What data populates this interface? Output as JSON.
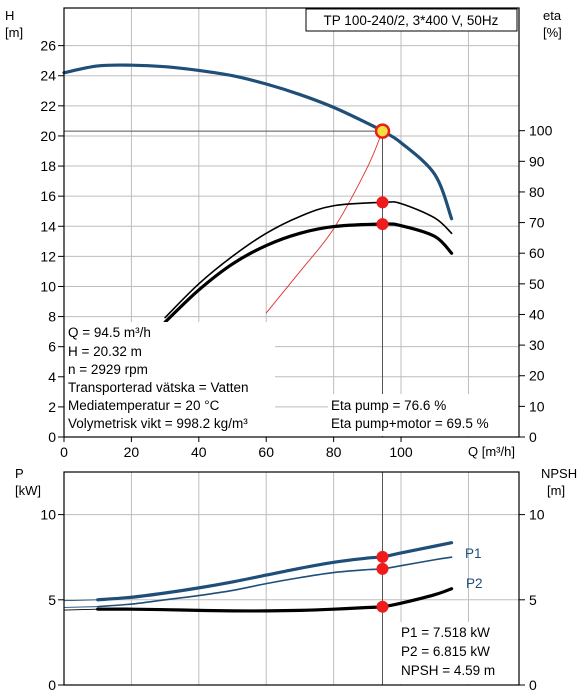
{
  "chart_data": [
    {
      "type": "line",
      "title": "TP 100-240/2, 3*400 V, 50Hz",
      "xlabel": "Q [m³/h]",
      "ylabel_left": "H",
      "ylabel_left_unit": "[m]",
      "ylabel_right": "eta",
      "ylabel_right_unit": "[%]",
      "xlim": [
        0,
        135
      ],
      "ylim_left": [
        0,
        28
      ],
      "ylim_right_eta": [
        0,
        100
      ],
      "grid": true,
      "x_ticks": [
        "0",
        "20",
        "40",
        "60",
        "80",
        "100"
      ],
      "y_ticks_left": [
        "0",
        "2",
        "4",
        "6",
        "8",
        "10",
        "12",
        "14",
        "16",
        "18",
        "20",
        "22",
        "24",
        "26"
      ],
      "y_ticks_right": [
        "0",
        "10",
        "20",
        "30",
        "40",
        "50",
        "60",
        "70",
        "80",
        "90",
        "100"
      ],
      "series": [
        {
          "color": "#1f4e79",
          "axis": "left",
          "x": [
            0,
            10,
            20,
            30,
            40,
            50,
            60,
            70,
            80,
            90,
            94.5,
            100,
            110,
            115
          ],
          "y": [
            24.2,
            24.65,
            24.7,
            24.6,
            24.35,
            24.0,
            23.45,
            22.75,
            21.9,
            20.85,
            20.32,
            19.55,
            17.45,
            14.5
          ]
        },
        {
          "color": "#e03030",
          "axis": "right",
          "x": [
            60,
            70,
            80,
            90,
            94.5
          ],
          "y": [
            40.5,
            54,
            68,
            88,
            100
          ]
        },
        {
          "color": "#000000",
          "axis": "right",
          "x": [
            30,
            40,
            50,
            60,
            70,
            80,
            94.5,
            100,
            110,
            115
          ],
          "y": [
            39,
            50,
            59,
            66.5,
            72,
            75.5,
            76.6,
            76.2,
            71.5,
            66.5
          ]
        },
        {
          "color": "#000000",
          "axis": "right",
          "x": [
            30,
            40,
            50,
            60,
            70,
            80,
            94.5,
            100,
            110,
            115
          ],
          "y": [
            37.5,
            48,
            56.5,
            62.5,
            66.5,
            68.7,
            69.5,
            69,
            65.5,
            60
          ]
        }
      ],
      "duty_point": {
        "x": 94.5,
        "y": 20.32,
        "color": "#f0e040"
      },
      "markers": [
        {
          "axis": "right",
          "x": 94.5,
          "y": 76.6,
          "color": "#ee1c1c"
        },
        {
          "axis": "right",
          "x": 94.5,
          "y": 69.5,
          "color": "#ee1c1c"
        }
      ],
      "annotations": {
        "left": [
          "Q = 94.5 m³/h",
          "H = 20.32 m",
          "n = 2929 rpm",
          "Transporterad vätska = Vatten",
          "Mediatemperatur = 20 °C",
          "Volymetrisk vikt = 998.2 kg/m³"
        ],
        "right": [
          "Eta pump = 76.6 %",
          "Eta pump+motor = 69.5 %"
        ]
      }
    },
    {
      "type": "line",
      "ylabel_left": "P",
      "ylabel_left_unit": "[kW]",
      "ylabel_right": "NPSH",
      "ylabel_right_unit": "[m]",
      "xlim": [
        0,
        135
      ],
      "ylim": [
        0,
        12.5
      ],
      "grid": true,
      "y_ticks_left": [
        "0",
        "5",
        "10"
      ],
      "y_ticks_right": [
        "0",
        "5",
        "10"
      ],
      "series": [
        {
          "name": "P1",
          "color": "#1f4e79",
          "x": [
            10,
            20,
            30,
            40,
            50,
            60,
            70,
            80,
            90,
            94.5,
            100,
            110,
            115
          ],
          "y": [
            5.0,
            5.15,
            5.4,
            5.7,
            6.05,
            6.45,
            6.85,
            7.2,
            7.45,
            7.518,
            7.75,
            8.15,
            8.35
          ]
        },
        {
          "name": "P2",
          "color": "#1f4e79",
          "x": [
            10,
            20,
            30,
            40,
            50,
            60,
            70,
            80,
            90,
            94.5,
            100,
            110,
            115
          ],
          "y": [
            4.6,
            4.75,
            5.0,
            5.25,
            5.55,
            5.95,
            6.3,
            6.6,
            6.77,
            6.815,
            7.0,
            7.35,
            7.5
          ]
        },
        {
          "color": "#000000",
          "x": [
            10,
            20,
            30,
            40,
            50,
            60,
            70,
            80,
            90,
            94.5,
            100,
            110,
            115
          ],
          "y": [
            4.45,
            4.45,
            4.42,
            4.38,
            4.35,
            4.35,
            4.38,
            4.45,
            4.55,
            4.59,
            4.8,
            5.3,
            5.65
          ]
        }
      ],
      "markers": [
        {
          "x": 94.5,
          "y": 7.518,
          "color": "#ee1c1c"
        },
        {
          "x": 94.5,
          "y": 6.815,
          "color": "#ee1c1c"
        },
        {
          "x": 94.5,
          "y": 4.59,
          "color": "#ee1c1c"
        }
      ],
      "annotations": [
        "P1 = 7.518 kW",
        "P2 = 6.815 kW",
        "NPSH = 4.59 m"
      ]
    }
  ]
}
